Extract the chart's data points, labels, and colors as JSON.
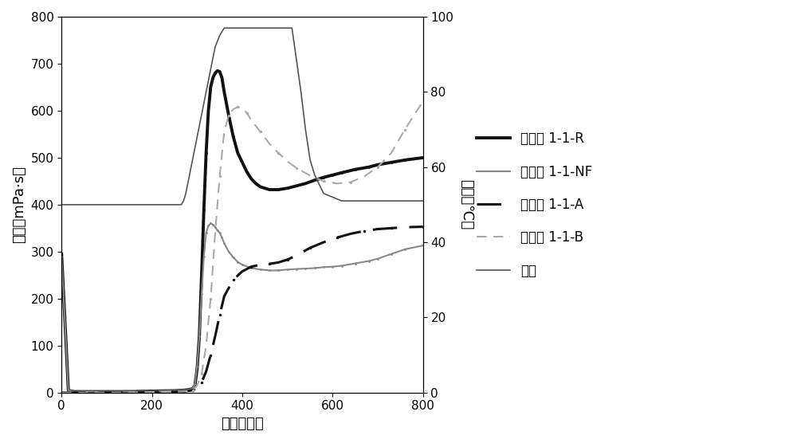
{
  "xlabel": "时间（秒）",
  "ylabel_left": "粘度（mPa·s）",
  "ylabel_right": "温度（℃）",
  "xlim": [
    0,
    800
  ],
  "ylim_left": [
    0,
    800
  ],
  "ylim_right": [
    0,
    100
  ],
  "xticks": [
    0,
    200,
    400,
    600,
    800
  ],
  "yticks_left": [
    0,
    100,
    200,
    300,
    400,
    500,
    600,
    700,
    800
  ],
  "yticks_right": [
    0,
    20,
    40,
    60,
    80,
    100
  ],
  "legend_labels": [
    "比较例 1-1-R",
    "比较例 1-1-NF",
    "实施例 1-1-A",
    "实施例 1-1-B",
    "温度"
  ],
  "series": {
    "R": {
      "x": [
        0,
        15,
        20,
        30,
        50,
        100,
        150,
        200,
        250,
        270,
        280,
        290,
        295,
        300,
        305,
        310,
        315,
        320,
        325,
        330,
        335,
        340,
        345,
        350,
        355,
        360,
        370,
        380,
        390,
        400,
        410,
        420,
        430,
        440,
        460,
        480,
        500,
        520,
        540,
        560,
        580,
        600,
        620,
        650,
        680,
        700,
        730,
        760,
        800
      ],
      "y": [
        295,
        5,
        3,
        2,
        2,
        2,
        2,
        3,
        4,
        5,
        6,
        8,
        15,
        50,
        120,
        250,
        390,
        510,
        600,
        650,
        670,
        680,
        685,
        683,
        670,
        640,
        590,
        545,
        510,
        490,
        470,
        455,
        445,
        438,
        432,
        432,
        435,
        440,
        445,
        452,
        458,
        463,
        468,
        475,
        480,
        485,
        490,
        495,
        500
      ],
      "color": "#111111",
      "linewidth": 2.8,
      "linestyle": "solid"
    },
    "NF": {
      "x": [
        0,
        15,
        20,
        30,
        50,
        100,
        150,
        200,
        250,
        270,
        280,
        290,
        295,
        300,
        305,
        310,
        315,
        320,
        325,
        330,
        335,
        340,
        345,
        350,
        355,
        360,
        370,
        380,
        390,
        400,
        420,
        440,
        460,
        480,
        500,
        520,
        540,
        560,
        580,
        600,
        620,
        650,
        680,
        700,
        730,
        760,
        800
      ],
      "y": [
        290,
        5,
        3,
        2,
        2,
        2,
        2,
        3,
        4,
        5,
        6,
        8,
        18,
        55,
        120,
        210,
        290,
        340,
        355,
        360,
        358,
        352,
        345,
        340,
        330,
        318,
        300,
        288,
        278,
        272,
        265,
        262,
        260,
        260,
        262,
        263,
        264,
        265,
        267,
        268,
        270,
        275,
        280,
        285,
        295,
        305,
        313
      ],
      "color": "#888888",
      "linewidth": 1.5,
      "linestyle": "solid"
    },
    "A": {
      "x": [
        0,
        100,
        200,
        270,
        290,
        300,
        310,
        320,
        330,
        340,
        350,
        360,
        380,
        400,
        420,
        440,
        460,
        480,
        500,
        520,
        550,
        580,
        610,
        640,
        670,
        700,
        730,
        760,
        800
      ],
      "y": [
        0,
        0,
        1,
        2,
        5,
        10,
        22,
        45,
        80,
        120,
        165,
        205,
        240,
        258,
        268,
        272,
        274,
        277,
        283,
        292,
        308,
        320,
        330,
        338,
        344,
        348,
        350,
        352,
        353
      ],
      "color": "#111111",
      "linewidth": 2.2,
      "linestyle": "dashed",
      "dash": [
        10,
        5
      ]
    },
    "B": {
      "x": [
        0,
        100,
        200,
        270,
        290,
        300,
        310,
        320,
        330,
        340,
        350,
        360,
        370,
        380,
        390,
        400,
        410,
        420,
        440,
        460,
        480,
        500,
        520,
        550,
        580,
        610,
        640,
        670,
        700,
        730,
        760,
        800
      ],
      "y": [
        0,
        0,
        1,
        2,
        5,
        15,
        40,
        100,
        200,
        340,
        460,
        555,
        590,
        603,
        608,
        605,
        595,
        580,
        555,
        530,
        510,
        492,
        478,
        462,
        450,
        445,
        448,
        460,
        480,
        510,
        560,
        620
      ],
      "color": "#aaaaaa",
      "linewidth": 1.5,
      "linestyle": "dashed",
      "dash": [
        6,
        4
      ]
    },
    "temp": {
      "x": [
        0,
        50,
        100,
        150,
        200,
        250,
        265,
        270,
        275,
        280,
        290,
        300,
        310,
        320,
        330,
        340,
        350,
        360,
        380,
        400,
        420,
        450,
        480,
        510,
        530,
        540,
        550,
        560,
        580,
        600,
        620,
        650,
        680,
        710,
        750,
        800
      ],
      "y_temp": [
        50,
        50,
        50,
        50,
        50,
        50,
        50,
        51,
        53,
        56,
        62,
        68,
        74,
        80,
        86,
        92,
        95,
        97,
        97,
        97,
        97,
        97,
        97,
        97,
        80,
        70,
        62,
        58,
        53,
        52,
        51,
        51,
        51,
        51,
        51,
        51
      ],
      "color": "#555555",
      "linewidth": 1.2,
      "linestyle": "solid"
    }
  }
}
